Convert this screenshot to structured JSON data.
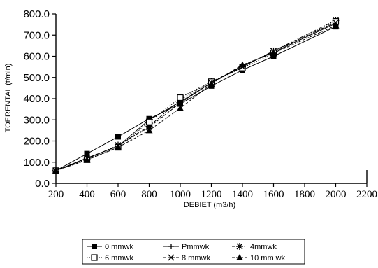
{
  "chart_data": {
    "type": "line",
    "title": "",
    "xlabel": "DEBIET (m3/h)",
    "ylabel": "TOERENTAL (t/min)",
    "xlim": [
      200,
      2200
    ],
    "ylim": [
      0,
      800
    ],
    "x_ticks": [
      "200",
      "400",
      "600",
      "800",
      "1000",
      "1200",
      "1400",
      "1600",
      "1800",
      "2000",
      "2200"
    ],
    "y_ticks": [
      "0.0",
      "100.0",
      "200.0",
      "300.0",
      "400.0",
      "500.0",
      "600.0",
      "700.0",
      "800.0"
    ],
    "grid": false,
    "legend_position": "bottom",
    "series": [
      {
        "name": "0 mmwk",
        "marker": "filled-square",
        "dash": "solid",
        "x": [
          200,
          400,
          600,
          800,
          1000,
          1200,
          1400,
          1600,
          2000
        ],
        "y": [
          60,
          140,
          220,
          305,
          375,
          460,
          535,
          600,
          740
        ]
      },
      {
        "name": "Pmmwk",
        "marker": "plus",
        "dash": "solid",
        "x": [
          200,
          400,
          600,
          800,
          1000,
          1200,
          1400,
          1600,
          2000
        ],
        "y": [
          60,
          120,
          175,
          300,
          385,
          475,
          555,
          620,
          755
        ]
      },
      {
        "name": "4mmwk",
        "marker": "asterisk",
        "dash": "dash-dot",
        "x": [
          200,
          400,
          600,
          800,
          1000,
          1200,
          1400,
          1600,
          2000
        ],
        "y": [
          60,
          115,
          180,
          270,
          395,
          480,
          550,
          625,
          770
        ]
      },
      {
        "name": "6 mmwk",
        "marker": "open-square",
        "dash": "dotted",
        "x": [
          200,
          400,
          600,
          800,
          1000,
          1200,
          1400,
          1600,
          2000
        ],
        "y": [
          60,
          112,
          170,
          290,
          405,
          480,
          545,
          615,
          765
        ]
      },
      {
        "name": "8 mmwk",
        "marker": "x",
        "dash": "dashed",
        "x": [
          200,
          400,
          600,
          800,
          1000,
          1200,
          1400,
          1600,
          2000
        ],
        "y": [
          60,
          118,
          178,
          265,
          380,
          475,
          550,
          625,
          760
        ]
      },
      {
        "name": "10 mm wk",
        "marker": "filled-triangle",
        "dash": "dashed",
        "x": [
          200,
          400,
          600,
          800,
          1000,
          1200,
          1400,
          1600,
          2000
        ],
        "y": [
          60,
          110,
          170,
          250,
          355,
          470,
          560,
          615,
          745
        ]
      }
    ]
  }
}
